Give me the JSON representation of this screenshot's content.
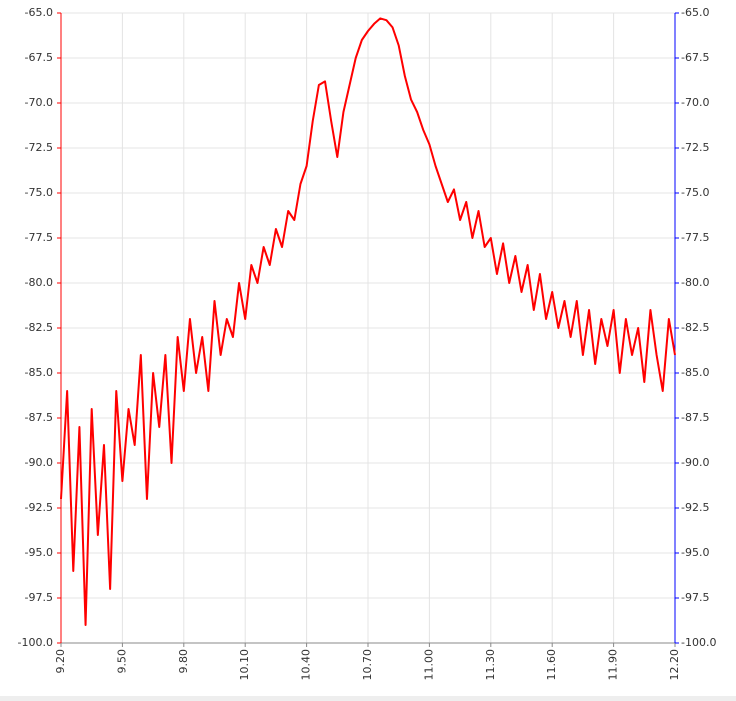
{
  "chart_data": {
    "type": "line",
    "x": [
      9.2,
      9.23,
      9.26,
      9.29,
      9.32,
      9.35,
      9.38,
      9.41,
      9.44,
      9.47,
      9.5,
      9.53,
      9.56,
      9.59,
      9.62,
      9.65,
      9.68,
      9.71,
      9.74,
      9.77,
      9.8,
      9.83,
      9.86,
      9.89,
      9.92,
      9.95,
      9.98,
      10.01,
      10.04,
      10.07,
      10.1,
      10.13,
      10.16,
      10.19,
      10.22,
      10.25,
      10.28,
      10.31,
      10.34,
      10.37,
      10.4,
      10.43,
      10.46,
      10.49,
      10.52,
      10.55,
      10.58,
      10.61,
      10.64,
      10.67,
      10.7,
      10.73,
      10.76,
      10.79,
      10.82,
      10.85,
      10.88,
      10.91,
      10.94,
      10.97,
      11.0,
      11.03,
      11.06,
      11.09,
      11.12,
      11.15,
      11.18,
      11.21,
      11.24,
      11.27,
      11.3,
      11.33,
      11.36,
      11.39,
      11.42,
      11.45,
      11.48,
      11.51,
      11.54,
      11.57,
      11.6,
      11.63,
      11.66,
      11.69,
      11.72,
      11.75,
      11.78,
      11.81,
      11.84,
      11.87,
      11.9,
      11.93,
      11.96,
      11.99,
      12.02,
      12.05,
      12.08,
      12.11,
      12.14,
      12.17,
      12.2
    ],
    "series": [
      {
        "color": "#ff0000",
        "values": [
          -92,
          -86,
          -96,
          -88,
          -99,
          -87,
          -94,
          -89,
          -97,
          -86,
          -91,
          -87,
          -89,
          -84,
          -92,
          -85,
          -88,
          -84,
          -90,
          -83,
          -86,
          -82,
          -85,
          -83,
          -86,
          -81,
          -84,
          -82,
          -83,
          -80,
          -82,
          -79,
          -80,
          -78,
          -79,
          -77,
          -78,
          -76,
          -76.5,
          -74.5,
          -73.5,
          -71,
          -69,
          -68.8,
          -71,
          -73,
          -70.5,
          -69,
          -67.5,
          -66.5,
          -66,
          -65.6,
          -65.3,
          -65.4,
          -65.8,
          -66.8,
          -68.5,
          -69.8,
          -70.5,
          -71.5,
          -72.3,
          -73.5,
          -74.5,
          -75.5,
          -74.8,
          -76.5,
          -75.5,
          -77.5,
          -76,
          -78,
          -77.5,
          -79.5,
          -77.8,
          -80,
          -78.5,
          -80.5,
          -79,
          -81.5,
          -79.5,
          -82,
          -80.5,
          -82.5,
          -81,
          -83,
          -81,
          -84,
          -81.5,
          -84.5,
          -82,
          -83.5,
          -81.5,
          -85,
          -82,
          -84,
          -82.5,
          -85.5,
          -81.5,
          -84,
          -86,
          -82,
          -84
        ]
      }
    ],
    "xlim": [
      9.2,
      12.2
    ],
    "xticks": [
      {
        "value": 9.2,
        "label": "9.20"
      },
      {
        "value": 9.5,
        "label": "9.50"
      },
      {
        "value": 9.8,
        "label": "9.80"
      },
      {
        "value": 10.1,
        "label": "10.10"
      },
      {
        "value": 10.4,
        "label": "10.40"
      },
      {
        "value": 10.7,
        "label": "10.70"
      },
      {
        "value": 11.0,
        "label": "11.00"
      },
      {
        "value": 11.3,
        "label": "11.30"
      },
      {
        "value": 11.6,
        "label": "11.60"
      },
      {
        "value": 11.9,
        "label": "11.90"
      },
      {
        "value": 12.2,
        "label": "12.20"
      }
    ],
    "ylim": [
      -100,
      -65
    ],
    "yticks": [
      {
        "value": -100,
        "label": "-100.0"
      },
      -97.5,
      {
        "value": -95,
        "label": "-95.0"
      },
      -92.5,
      {
        "value": -90,
        "label": "-90.0"
      },
      -87.5,
      {
        "value": -85,
        "label": "-85.0"
      },
      -82.5,
      {
        "value": -80,
        "label": "-80.0"
      },
      -77.5,
      {
        "value": -75,
        "label": "-75.0"
      },
      -72.5,
      {
        "value": -70,
        "label": "-70.0"
      },
      -67.5,
      {
        "value": -65,
        "label": "-65.0"
      }
    ],
    "y2lim": [
      -100,
      -65
    ],
    "y2ticks": [
      {
        "value": -100,
        "label": "-100.0"
      },
      -97.5,
      {
        "value": -95,
        "label": "-95.0"
      },
      -92.5,
      {
        "value": -90,
        "label": "-90.0"
      },
      -87.5,
      {
        "value": -85,
        "label": "-85.0"
      },
      -82.5,
      {
        "value": -80,
        "label": "-80.0"
      },
      -77.5,
      {
        "value": -75,
        "label": "-75.0"
      },
      -72.5,
      {
        "value": -70,
        "label": "-70.0"
      },
      -67.5,
      {
        "value": -65,
        "label": "-65.0"
      }
    ],
    "grid": true,
    "y_axis_color": "#ff0000",
    "y2_axis_color": "#0000ff"
  }
}
